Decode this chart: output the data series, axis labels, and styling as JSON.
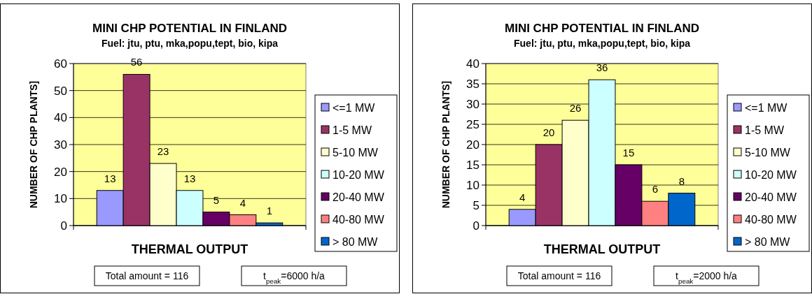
{
  "chart_data": [
    {
      "type": "bar",
      "title": "MINI CHP POTENTIAL IN FINLAND",
      "subtitle": "Fuel: jtu, ptu, mka,popu,tept, bio, kipa",
      "xlabel": "THERMAL OUTPUT",
      "ylabel": "NUMBER OF CHP PLANTS]",
      "categories": [
        null
      ],
      "series": [
        {
          "name": "<=1 MW",
          "color": "#9999ff",
          "values": [
            13
          ]
        },
        {
          "name": "1-5 MW",
          "color": "#993366",
          "values": [
            56
          ]
        },
        {
          "name": "5-10 MW",
          "color": "#ffffcc",
          "values": [
            23
          ]
        },
        {
          "name": "10-20 MW",
          "color": "#ccffff",
          "values": [
            13
          ]
        },
        {
          "name": "20-40 MW",
          "color": "#660066",
          "values": [
            5
          ]
        },
        {
          "name": "40-80 MW",
          "color": "#ff8080",
          "values": [
            4
          ]
        },
        {
          "name": "> 80 MW",
          "color": "#0066cc",
          "values": [
            1
          ]
        }
      ],
      "ylim": [
        0,
        60
      ],
      "yticks": [
        0,
        10,
        20,
        30,
        40,
        50,
        60
      ],
      "grid": "y",
      "legend": "right",
      "data_labels": true,
      "annotations": [
        "Total amount = 116",
        "t$_{peak}$=6000 h/a"
      ]
    },
    {
      "type": "bar",
      "title": "MINI CHP POTENTIAL IN FINLAND",
      "subtitle": "Fuel: jtu, ptu, mka,popu,tept, bio, kipa",
      "xlabel": "THERMAL OUTPUT",
      "ylabel": "NUMBER OF CHP PLANTS]",
      "categories": [
        null
      ],
      "series": [
        {
          "name": "<=1 MW",
          "color": "#9999ff",
          "values": [
            4
          ]
        },
        {
          "name": "1-5 MW",
          "color": "#993366",
          "values": [
            20
          ]
        },
        {
          "name": "5-10 MW",
          "color": "#ffffcc",
          "values": [
            26
          ]
        },
        {
          "name": "10-20 MW",
          "color": "#ccffff",
          "values": [
            36
          ]
        },
        {
          "name": "20-40 MW",
          "color": "#660066",
          "values": [
            15
          ]
        },
        {
          "name": "40-80 MW",
          "color": "#ff8080",
          "values": [
            6
          ]
        },
        {
          "name": "> 80 MW",
          "color": "#0066cc",
          "values": [
            8
          ]
        }
      ],
      "ylim": [
        0,
        40
      ],
      "yticks": [
        0,
        5,
        10,
        15,
        20,
        25,
        30,
        35,
        40
      ],
      "grid": "y",
      "legend": "right",
      "data_labels": true,
      "annotations": [
        "Total amount = 116",
        "t$_{peak}$=2000 h/a"
      ]
    }
  ]
}
